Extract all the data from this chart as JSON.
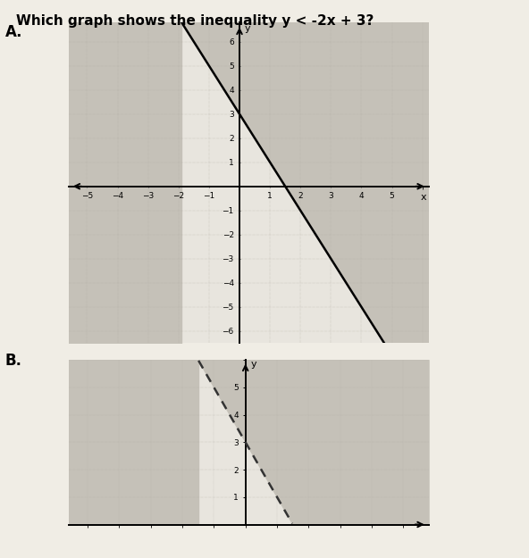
{
  "title": "Which graph shows the inequality y < -2x + 3?",
  "title_fontsize": 11,
  "page_bg": "#f0ede5",
  "graph_bg": "#dedad2",
  "shading_color": "#c5c1b8",
  "unshaded_color": "#e8e5de",
  "line_color_A": "#000000",
  "line_color_B": "#333333",
  "slope": -2,
  "intercept": 3,
  "A_xlim": [
    -5.6,
    6.2
  ],
  "A_ylim": [
    -6.5,
    6.8
  ],
  "B_xlim": [
    -5.6,
    5.8
  ],
  "B_ylim": [
    0,
    6.0
  ],
  "xticks_A": [
    -5,
    -4,
    -3,
    -2,
    -1,
    1,
    2,
    3,
    4,
    5
  ],
  "yticks_A": [
    -6,
    -5,
    -4,
    -3,
    -2,
    -1,
    1,
    2,
    3,
    4,
    5,
    6
  ],
  "xticks_B": [],
  "yticks_B": [
    1,
    2,
    3,
    4,
    5
  ],
  "label_A": "A.",
  "label_B": "B.",
  "tick_fontsize": 6.5,
  "grid_color": "#b0aca4",
  "grid_lw": 0.35
}
